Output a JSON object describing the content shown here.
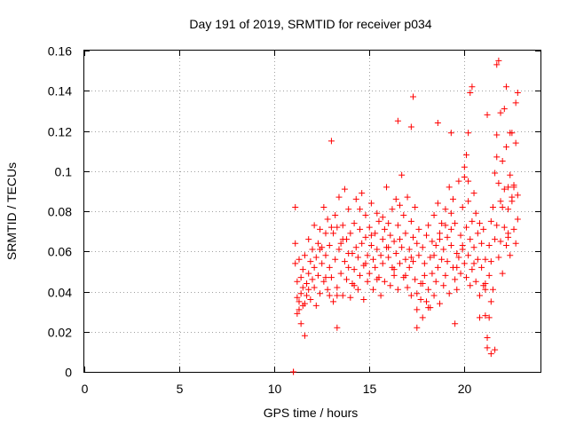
{
  "chart_data": {
    "type": "scatter",
    "title": "Day 191 of 2019, SRMTID for receiver p034",
    "xlabel": "GPS time / hours",
    "ylabel": "SRMTID / TECUs",
    "xlim": [
      0,
      24
    ],
    "ylim": [
      0,
      0.16
    ],
    "xticks": [
      0,
      5,
      10,
      15,
      20
    ],
    "xtick_labels": [
      "0",
      "5",
      "10",
      "15",
      "20"
    ],
    "yticks": [
      0,
      0.02,
      0.04,
      0.06,
      0.08,
      0.1,
      0.12,
      0.14,
      0.16
    ],
    "ytick_labels": [
      "0",
      "0.02",
      "0.04",
      "0.06",
      "0.08",
      "0.1",
      "0.12",
      "0.14",
      "0.16"
    ],
    "grid": true,
    "marker": "+",
    "series": [
      {
        "name": "SRMTID",
        "color": "#ff0000",
        "x": [
          11.0,
          11.0,
          11.1,
          11.1,
          11.1,
          11.2,
          11.2,
          11.2,
          11.3,
          11.3,
          11.3,
          11.4,
          11.4,
          11.4,
          11.5,
          11.5,
          11.6,
          11.6,
          11.7,
          11.7,
          11.8,
          11.8,
          11.9,
          11.9,
          12.0,
          12.0,
          12.1,
          12.1,
          12.2,
          12.2,
          12.3,
          12.3,
          12.4,
          12.4,
          12.5,
          12.5,
          12.6,
          12.6,
          12.7,
          12.7,
          12.8,
          12.8,
          12.9,
          12.9,
          13.0,
          13.0,
          13.1,
          13.1,
          13.2,
          13.2,
          13.3,
          13.3,
          13.4,
          13.4,
          13.5,
          13.5,
          13.6,
          13.6,
          13.7,
          13.7,
          13.8,
          13.8,
          13.9,
          13.9,
          14.0,
          14.0,
          14.1,
          14.1,
          14.2,
          14.2,
          14.3,
          14.3,
          14.4,
          14.4,
          14.5,
          14.5,
          14.6,
          14.6,
          14.7,
          14.7,
          14.8,
          14.8,
          14.9,
          14.9,
          15.0,
          15.0,
          15.1,
          15.1,
          15.2,
          15.2,
          15.3,
          15.3,
          15.4,
          15.4,
          15.5,
          15.5,
          15.6,
          15.6,
          15.7,
          15.7,
          15.8,
          15.8,
          15.9,
          15.9,
          16.0,
          16.0,
          16.1,
          16.1,
          16.2,
          16.2,
          16.3,
          16.3,
          16.4,
          16.4,
          16.5,
          16.5,
          16.6,
          16.6,
          16.7,
          16.7,
          16.8,
          16.8,
          16.9,
          16.9,
          17.0,
          17.0,
          17.1,
          17.1,
          17.2,
          17.2,
          17.3,
          17.3,
          17.4,
          17.4,
          17.5,
          17.5,
          17.6,
          17.6,
          17.7,
          17.7,
          17.8,
          17.8,
          17.9,
          17.9,
          18.0,
          18.0,
          18.1,
          18.1,
          18.2,
          18.2,
          18.3,
          18.3,
          18.4,
          18.4,
          18.5,
          18.5,
          18.6,
          18.6,
          18.7,
          18.7,
          18.8,
          18.8,
          18.9,
          18.9,
          19.0,
          19.0,
          19.1,
          19.1,
          19.2,
          19.2,
          19.3,
          19.3,
          19.4,
          19.4,
          19.5,
          19.5,
          19.6,
          19.6,
          19.7,
          19.7,
          19.8,
          19.8,
          19.9,
          19.9,
          20.0,
          20.0,
          20.1,
          20.1,
          20.2,
          20.2,
          20.3,
          20.3,
          20.4,
          20.4,
          20.5,
          20.5,
          20.6,
          20.6,
          20.7,
          20.7,
          20.8,
          20.8,
          20.9,
          20.9,
          21.0,
          21.0,
          21.1,
          21.1,
          21.2,
          21.2,
          21.3,
          21.3,
          21.4,
          21.4,
          21.5,
          21.5,
          21.6,
          21.6,
          21.7,
          21.7,
          21.8,
          21.8,
          21.9,
          21.9,
          22.0,
          22.0,
          22.1,
          22.1,
          22.2,
          22.2,
          22.3,
          22.3,
          22.4,
          22.4,
          22.5,
          22.5,
          22.6,
          22.6,
          22.7,
          22.7,
          22.8,
          22.8,
          11.5,
          11.8,
          12.1,
          12.4,
          12.7,
          13.0,
          13.3,
          13.6,
          13.9,
          14.2,
          14.5,
          14.8,
          15.1,
          15.4,
          15.7,
          16.0,
          16.3,
          16.6,
          16.9,
          17.2,
          17.5,
          17.8,
          18.1,
          18.4,
          18.7,
          19.0,
          19.3,
          19.6,
          19.9,
          20.2,
          20.5,
          20.8,
          21.1,
          21.4,
          21.7,
          22.0,
          22.3,
          22.6,
          11.6,
          12.9,
          16.5,
          17.2,
          18.6,
          19.3,
          20.3,
          20.4,
          21.2,
          21.7,
          21.8,
          22.2,
          22.4,
          22.8,
          13.3,
          17.3,
          17.5,
          19.5,
          20.2,
          21.4,
          21.6,
          21.9,
          22.1,
          22.3,
          22.5,
          22.7,
          20.1,
          20.0,
          21.3,
          21.1
        ],
        "y": [
          0.0,
          0.0,
          0.064,
          0.054,
          0.082,
          0.045,
          0.037,
          0.029,
          0.056,
          0.035,
          0.031,
          0.047,
          0.024,
          0.039,
          0.051,
          0.042,
          0.034,
          0.058,
          0.044,
          0.038,
          0.049,
          0.066,
          0.036,
          0.055,
          0.046,
          0.061,
          0.042,
          0.073,
          0.057,
          0.033,
          0.064,
          0.048,
          0.071,
          0.039,
          0.062,
          0.054,
          0.082,
          0.045,
          0.058,
          0.069,
          0.041,
          0.076,
          0.052,
          0.063,
          0.115,
          0.047,
          0.069,
          0.035,
          0.078,
          0.056,
          0.042,
          0.072,
          0.061,
          0.087,
          0.049,
          0.064,
          0.038,
          0.073,
          0.055,
          0.091,
          0.046,
          0.066,
          0.052,
          0.081,
          0.037,
          0.069,
          0.059,
          0.044,
          0.074,
          0.051,
          0.062,
          0.086,
          0.041,
          0.057,
          0.071,
          0.048,
          0.064,
          0.089,
          0.053,
          0.036,
          0.067,
          0.078,
          0.045,
          0.058,
          0.072,
          0.049,
          0.063,
          0.084,
          0.056,
          0.041,
          0.069,
          0.052,
          0.079,
          0.061,
          0.047,
          0.075,
          0.058,
          0.038,
          0.066,
          0.054,
          0.071,
          0.045,
          0.062,
          0.092,
          0.057,
          0.074,
          0.043,
          0.068,
          0.081,
          0.052,
          0.065,
          0.048,
          0.086,
          0.059,
          0.073,
          0.041,
          0.066,
          0.054,
          0.098,
          0.062,
          0.047,
          0.078,
          0.056,
          0.069,
          0.042,
          0.087,
          0.061,
          0.052,
          0.075,
          0.038,
          0.067,
          0.055,
          0.082,
          0.046,
          0.064,
          0.031,
          0.071,
          0.058,
          0.044,
          0.036,
          0.062,
          0.027,
          0.054,
          0.048,
          0.068,
          0.035,
          0.073,
          0.041,
          0.057,
          0.032,
          0.065,
          0.049,
          0.078,
          0.038,
          0.063,
          0.045,
          0.084,
          0.052,
          0.069,
          0.034,
          0.056,
          0.074,
          0.043,
          0.061,
          0.081,
          0.048,
          0.067,
          0.055,
          0.092,
          0.039,
          0.063,
          0.071,
          0.052,
          0.086,
          0.046,
          0.074,
          0.059,
          0.041,
          0.095,
          0.057,
          0.068,
          0.049,
          0.082,
          0.063,
          0.054,
          0.097,
          0.047,
          0.072,
          0.058,
          0.085,
          0.043,
          0.066,
          0.075,
          0.051,
          0.089,
          0.062,
          0.045,
          0.079,
          0.056,
          0.069,
          0.038,
          0.074,
          0.052,
          0.064,
          0.043,
          0.071,
          0.028,
          0.056,
          0.017,
          0.012,
          0.063,
          0.048,
          0.075,
          0.055,
          0.082,
          0.041,
          0.099,
          0.066,
          0.118,
          0.073,
          0.057,
          0.094,
          0.065,
          0.085,
          0.049,
          0.105,
          0.072,
          0.091,
          0.063,
          0.112,
          0.081,
          0.067,
          0.098,
          0.058,
          0.085,
          0.119,
          0.071,
          0.093,
          0.064,
          0.134,
          0.088,
          0.076,
          0.033,
          0.041,
          0.052,
          0.061,
          0.047,
          0.072,
          0.038,
          0.066,
          0.059,
          0.043,
          0.081,
          0.054,
          0.068,
          0.046,
          0.077,
          0.062,
          0.051,
          0.083,
          0.048,
          0.057,
          0.039,
          0.044,
          0.032,
          0.058,
          0.066,
          0.073,
          0.079,
          0.052,
          0.061,
          0.095,
          0.054,
          0.027,
          0.041,
          0.035,
          0.107,
          0.082,
          0.069,
          0.092,
          0.018,
          0.038,
          0.125,
          0.122,
          0.124,
          0.119,
          0.139,
          0.142,
          0.128,
          0.153,
          0.155,
          0.142,
          0.119,
          0.139,
          0.022,
          0.137,
          0.022,
          0.024,
          0.119,
          0.009,
          0.011,
          0.129,
          0.131,
          0.092,
          0.087,
          0.114,
          0.108,
          0.102,
          0.027,
          0.044
        ]
      }
    ]
  }
}
